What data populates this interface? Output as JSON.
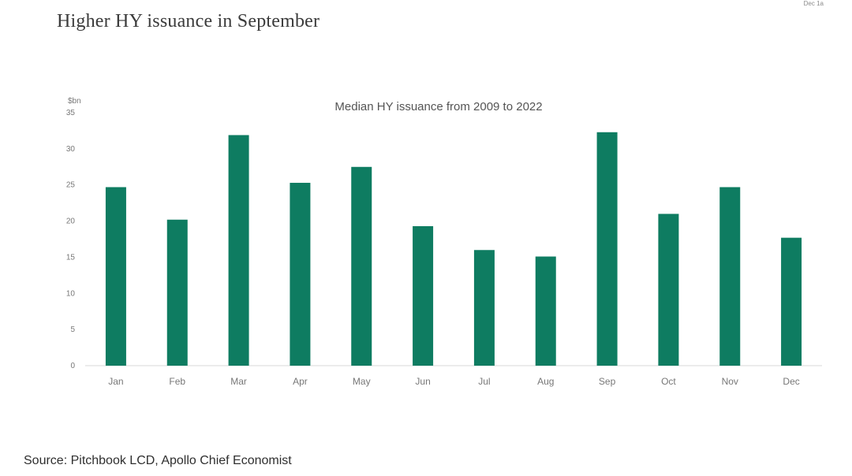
{
  "header": {
    "title": "Higher HY issuance in September",
    "corner_mark": "Dec 1a"
  },
  "footer": {
    "source": "Source: Pitchbook LCD, Apollo Chief Economist"
  },
  "colors": {
    "bar": "#0e7c61",
    "axis": "#d9d9d9",
    "text": "#555555"
  },
  "chart_data": {
    "type": "bar",
    "title": "Median HY issuance from 2009 to 2022",
    "ylabel": "$bn",
    "xlabel": "",
    "categories": [
      "Jan",
      "Feb",
      "Mar",
      "Apr",
      "May",
      "Jun",
      "Jul",
      "Aug",
      "Sep",
      "Oct",
      "Nov",
      "Dec"
    ],
    "values": [
      24.7,
      20.2,
      31.9,
      25.3,
      27.5,
      19.3,
      16.0,
      15.1,
      32.3,
      21.0,
      24.7,
      17.7
    ],
    "ylim": [
      0,
      35
    ],
    "yticks": [
      0,
      5,
      10,
      15,
      20,
      25,
      30,
      35
    ],
    "grid": false,
    "legend": "none"
  }
}
